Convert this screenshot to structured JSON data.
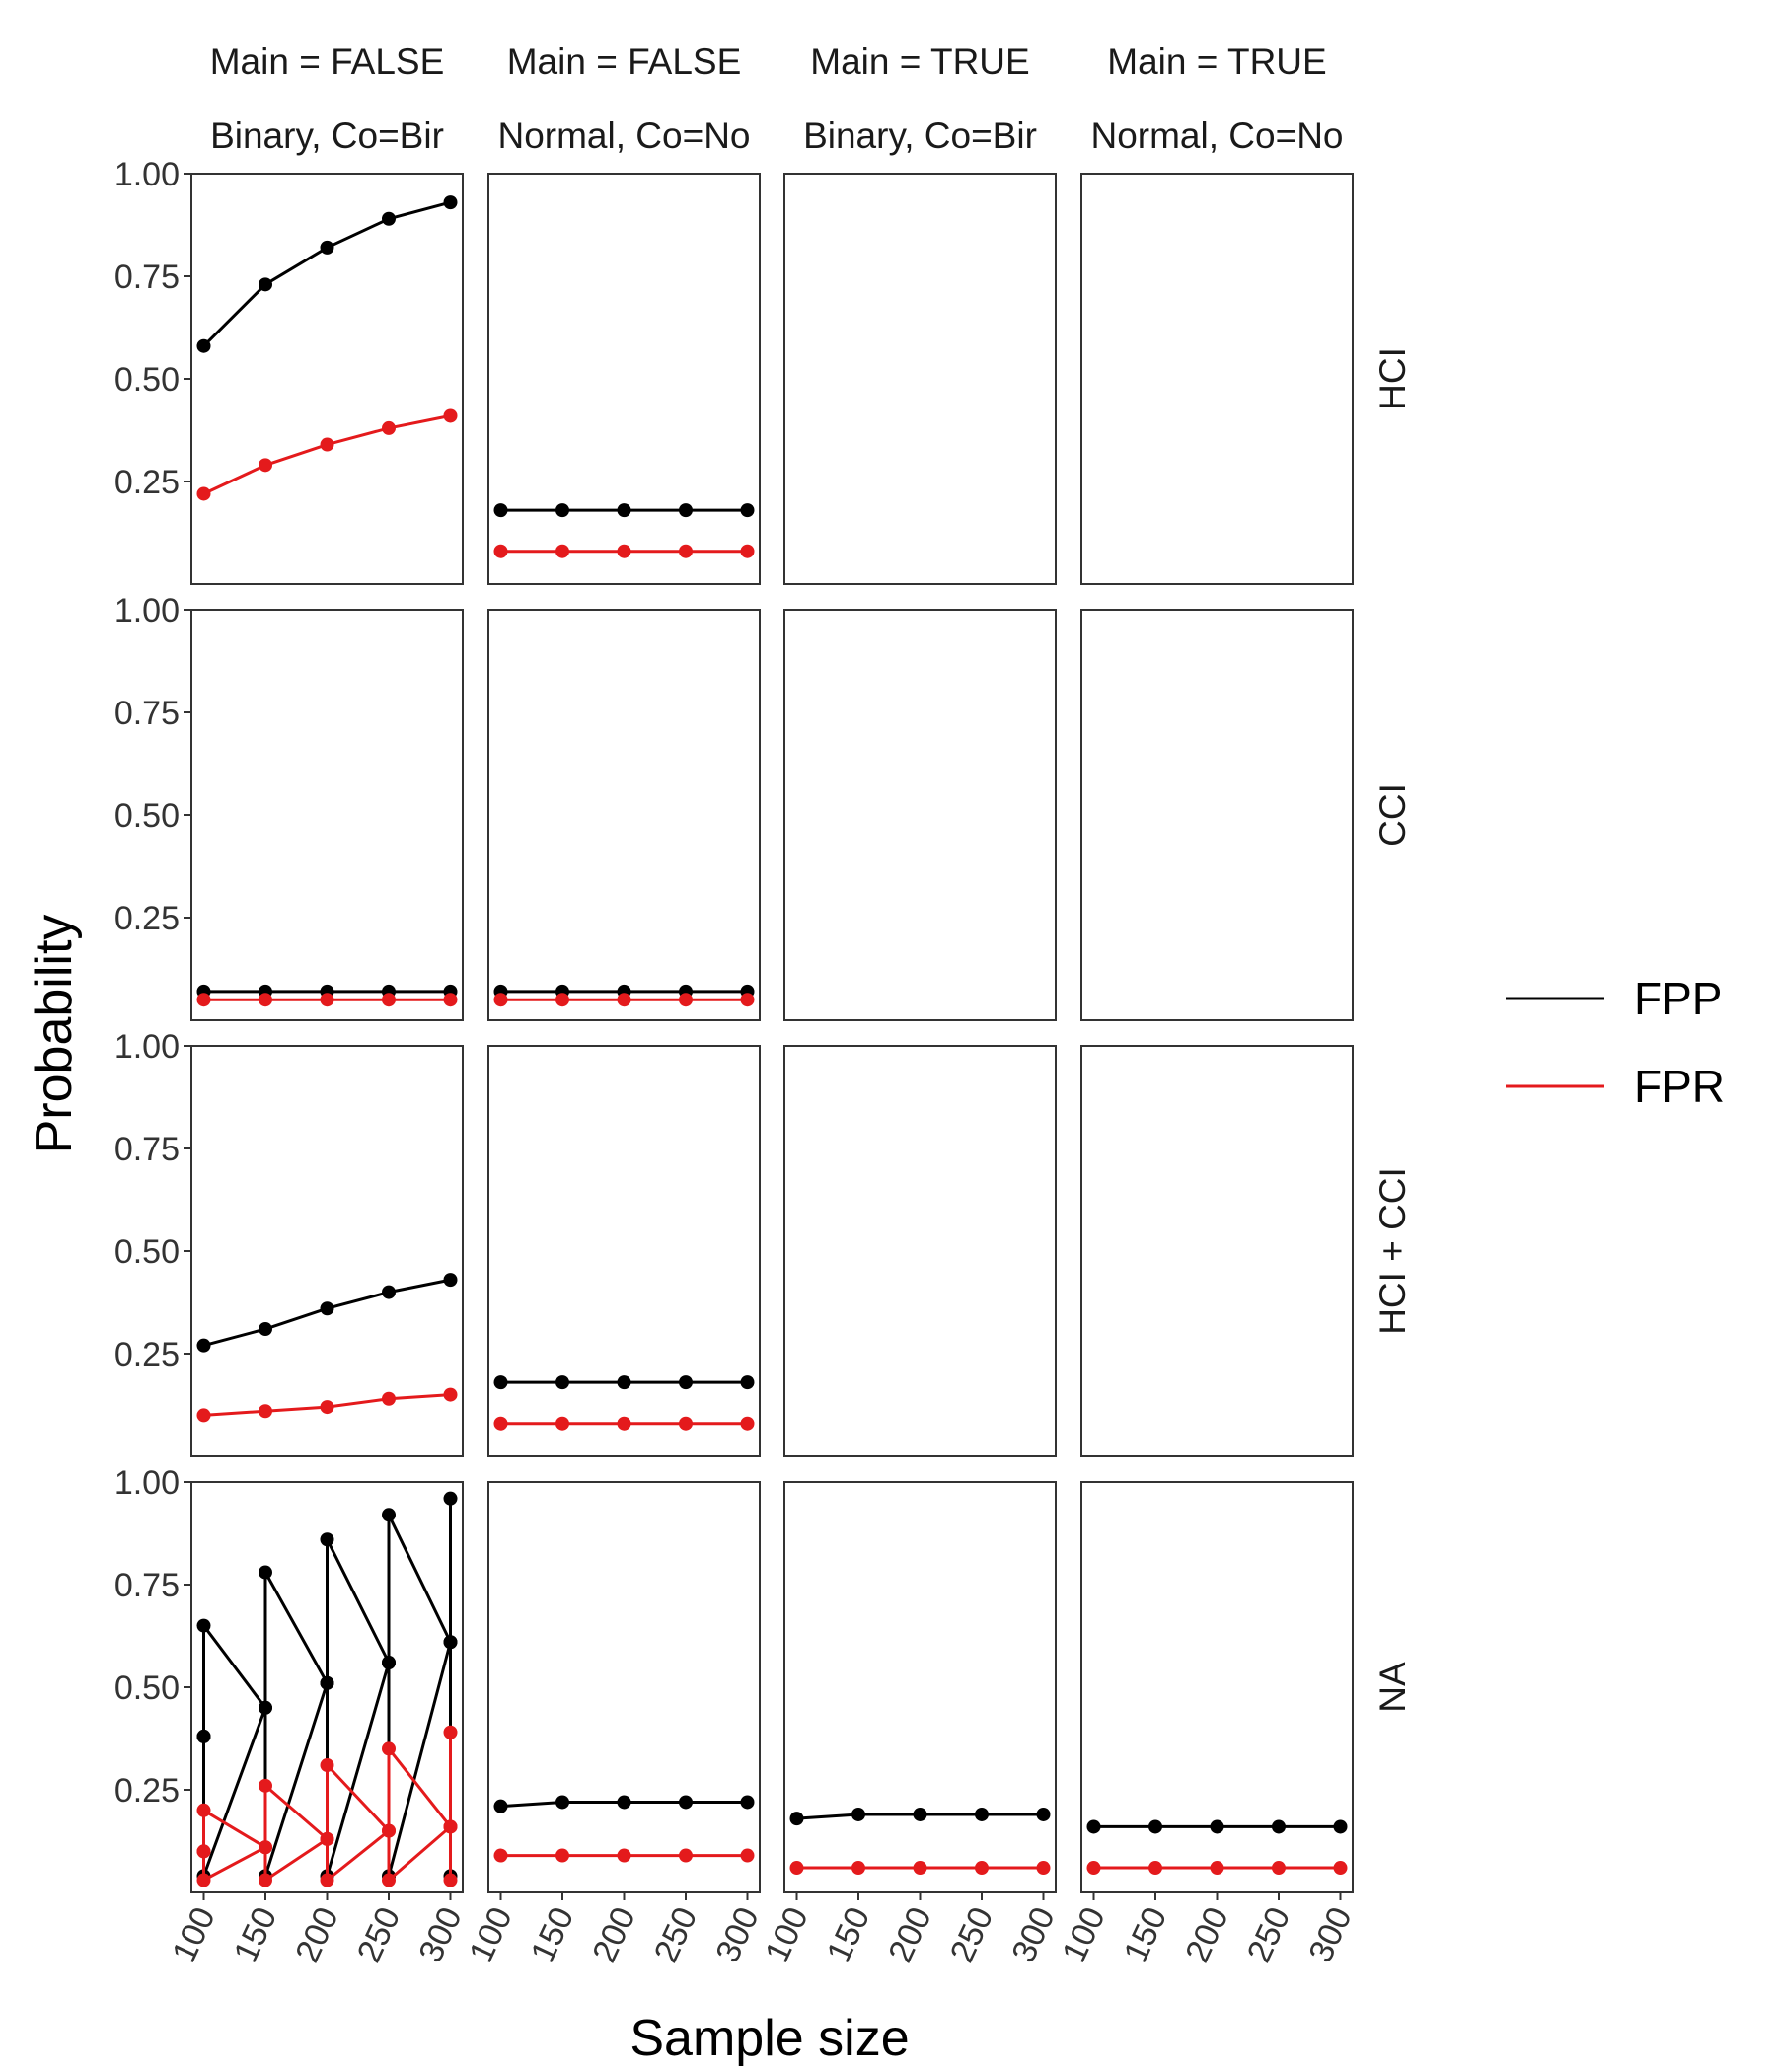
{
  "chart_data": {
    "type": "line",
    "xlabel": "Sample size",
    "ylabel": "Probability",
    "ylim": [
      0,
      1
    ],
    "y_ticks": [
      "0.25",
      "0.50",
      "0.75",
      "1.00"
    ],
    "x_ticks": [
      "100",
      "150",
      "200",
      "250",
      "300"
    ],
    "column_strips": [
      {
        "main": "Main = FALSE",
        "type": "Binary, Co=Bir"
      },
      {
        "main": "Main = FALSE",
        "type": "Normal, Co=No"
      },
      {
        "main": "Main = TRUE",
        "type": "Binary, Co=Bir"
      },
      {
        "main": "Main = TRUE",
        "type": "Normal, Co=No"
      }
    ],
    "row_strips": [
      "HCI",
      "CCI",
      "HCI + CCI",
      "NA"
    ],
    "legend": {
      "position": "right",
      "entries": [
        {
          "label": "FPP",
          "color": "#000000"
        },
        {
          "label": "FPR",
          "color": "#e41a1c"
        }
      ]
    },
    "x": [
      100,
      150,
      200,
      250,
      300
    ],
    "panels": [
      {
        "row": 0,
        "col": 0,
        "series": [
          {
            "name": "FPP",
            "values": [
              0.58,
              0.73,
              0.82,
              0.89,
              0.93
            ]
          },
          {
            "name": "FPR",
            "values": [
              0.22,
              0.29,
              0.34,
              0.38,
              0.41
            ]
          }
        ]
      },
      {
        "row": 0,
        "col": 1,
        "series": [
          {
            "name": "FPP",
            "values": [
              0.18,
              0.18,
              0.18,
              0.18,
              0.18
            ]
          },
          {
            "name": "FPR",
            "values": [
              0.08,
              0.08,
              0.08,
              0.08,
              0.08
            ]
          }
        ]
      },
      {
        "row": 0,
        "col": 2,
        "series": []
      },
      {
        "row": 0,
        "col": 3,
        "series": []
      },
      {
        "row": 1,
        "col": 0,
        "series": [
          {
            "name": "FPP",
            "values": [
              0.07,
              0.07,
              0.07,
              0.07,
              0.07
            ]
          },
          {
            "name": "FPR",
            "values": [
              0.05,
              0.05,
              0.05,
              0.05,
              0.05
            ]
          }
        ]
      },
      {
        "row": 1,
        "col": 1,
        "series": [
          {
            "name": "FPP",
            "values": [
              0.07,
              0.07,
              0.07,
              0.07,
              0.07
            ]
          },
          {
            "name": "FPR",
            "values": [
              0.05,
              0.05,
              0.05,
              0.05,
              0.05
            ]
          }
        ]
      },
      {
        "row": 1,
        "col": 2,
        "series": []
      },
      {
        "row": 1,
        "col": 3,
        "series": []
      },
      {
        "row": 2,
        "col": 0,
        "series": [
          {
            "name": "FPP",
            "values": [
              0.27,
              0.31,
              0.36,
              0.4,
              0.43
            ]
          },
          {
            "name": "FPR",
            "values": [
              0.1,
              0.11,
              0.12,
              0.14,
              0.15
            ]
          }
        ]
      },
      {
        "row": 2,
        "col": 1,
        "series": [
          {
            "name": "FPP",
            "values": [
              0.18,
              0.18,
              0.18,
              0.18,
              0.18
            ]
          },
          {
            "name": "FPR",
            "values": [
              0.08,
              0.08,
              0.08,
              0.08,
              0.08
            ]
          }
        ]
      },
      {
        "row": 2,
        "col": 2,
        "series": []
      },
      {
        "row": 2,
        "col": 3,
        "series": []
      },
      {
        "row": 3,
        "col": 0,
        "series": [
          {
            "name": "FPP",
            "values": [
              0.38,
              0.65,
              0.45,
              0.78,
              0.51,
              0.86,
              0.56,
              0.92,
              0.61,
              0.96
            ],
            "x": [
              100,
              100,
              150,
              150,
              200,
              200,
              250,
              250,
              300,
              300
            ]
          },
          {
            "name": "FPP",
            "values": [
              0.38,
              0.04,
              0.45,
              0.04,
              0.51,
              0.04,
              0.56,
              0.04,
              0.61,
              0.04
            ],
            "x": [
              100,
              100,
              150,
              150,
              200,
              200,
              250,
              250,
              300,
              300
            ]
          },
          {
            "name": "FPR",
            "values": [
              0.1,
              0.2,
              0.11,
              0.26,
              0.13,
              0.31,
              0.15,
              0.35,
              0.16,
              0.39
            ],
            "x": [
              100,
              100,
              150,
              150,
              200,
              200,
              250,
              250,
              300,
              300
            ]
          },
          {
            "name": "FPR",
            "values": [
              0.1,
              0.03,
              0.11,
              0.03,
              0.13,
              0.03,
              0.15,
              0.03,
              0.16,
              0.03
            ],
            "x": [
              100,
              100,
              150,
              150,
              200,
              200,
              250,
              250,
              300,
              300
            ]
          }
        ]
      },
      {
        "row": 3,
        "col": 1,
        "series": [
          {
            "name": "FPP",
            "values": [
              0.21,
              0.22,
              0.22,
              0.22,
              0.22
            ]
          },
          {
            "name": "FPR",
            "values": [
              0.09,
              0.09,
              0.09,
              0.09,
              0.09
            ]
          }
        ]
      },
      {
        "row": 3,
        "col": 2,
        "series": [
          {
            "name": "FPP",
            "values": [
              0.18,
              0.19,
              0.19,
              0.19,
              0.19
            ]
          },
          {
            "name": "FPR",
            "values": [
              0.06,
              0.06,
              0.06,
              0.06,
              0.06
            ]
          }
        ]
      },
      {
        "row": 3,
        "col": 3,
        "series": [
          {
            "name": "FPP",
            "values": [
              0.16,
              0.16,
              0.16,
              0.16,
              0.16
            ]
          },
          {
            "name": "FPR",
            "values": [
              0.06,
              0.06,
              0.06,
              0.06,
              0.06
            ]
          }
        ]
      }
    ]
  }
}
